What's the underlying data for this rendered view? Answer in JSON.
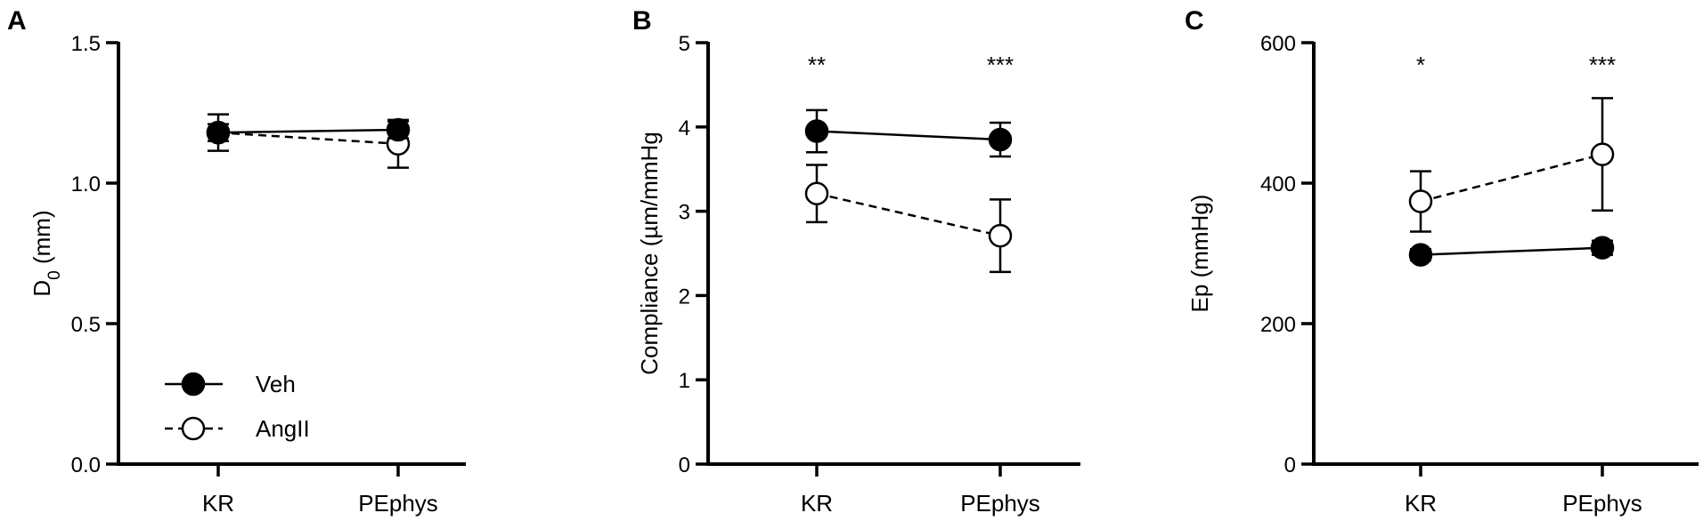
{
  "chart_data": [
    {
      "type": "line",
      "panel_label": "A",
      "ylabel": "D",
      "ylabel_sub": "0",
      "ylabel_unit": " (mm)",
      "ylim": [
        0,
        1.5
      ],
      "yticks": [
        0,
        0.5,
        1.0,
        1.5
      ],
      "ytick_labels": [
        "0.0",
        "0.5",
        "1.0",
        "1.5"
      ],
      "categories": [
        "KR",
        "PEphys"
      ],
      "series": [
        {
          "name": "Veh",
          "marker": "filled",
          "dash": false,
          "values": [
            1.18,
            1.19
          ],
          "err": [
            0.065,
            0.03
          ]
        },
        {
          "name": "AngII",
          "marker": "open",
          "dash": true,
          "values": [
            1.18,
            1.14
          ],
          "err": [
            0.03,
            0.085
          ]
        }
      ],
      "significance": [
        "",
        ""
      ],
      "legend": {
        "placement": "bottom-left",
        "entries": [
          "Veh",
          "AngII"
        ]
      }
    },
    {
      "type": "line",
      "panel_label": "B",
      "ylabel": "Compliance (µm/mmHg",
      "ylim": [
        0,
        5
      ],
      "yticks": [
        0,
        1,
        2,
        3,
        4,
        5
      ],
      "ytick_labels": [
        "0",
        "1",
        "2",
        "3",
        "4",
        "5"
      ],
      "categories": [
        "KR",
        "PEphys"
      ],
      "series": [
        {
          "name": "Veh",
          "marker": "filled",
          "dash": false,
          "values": [
            3.95,
            3.85
          ],
          "err": [
            0.25,
            0.2
          ]
        },
        {
          "name": "AngII",
          "marker": "open",
          "dash": true,
          "values": [
            3.21,
            2.71
          ],
          "err": [
            0.34,
            0.43
          ]
        }
      ],
      "significance": [
        "**",
        "***"
      ]
    },
    {
      "type": "line",
      "panel_label": "C",
      "ylabel": "Ep (mmHg)",
      "ylim": [
        0,
        600
      ],
      "yticks": [
        0,
        200,
        400,
        600
      ],
      "ytick_labels": [
        "0",
        "200",
        "400",
        "600"
      ],
      "categories": [
        "KR",
        "PEphys"
      ],
      "series": [
        {
          "name": "Veh",
          "marker": "filled",
          "dash": false,
          "values": [
            298,
            308
          ],
          "err": [
            8,
            10
          ]
        },
        {
          "name": "AngII",
          "marker": "open",
          "dash": true,
          "values": [
            374,
            441
          ],
          "err": [
            43,
            80
          ]
        }
      ],
      "significance": [
        "*",
        "***"
      ]
    }
  ]
}
